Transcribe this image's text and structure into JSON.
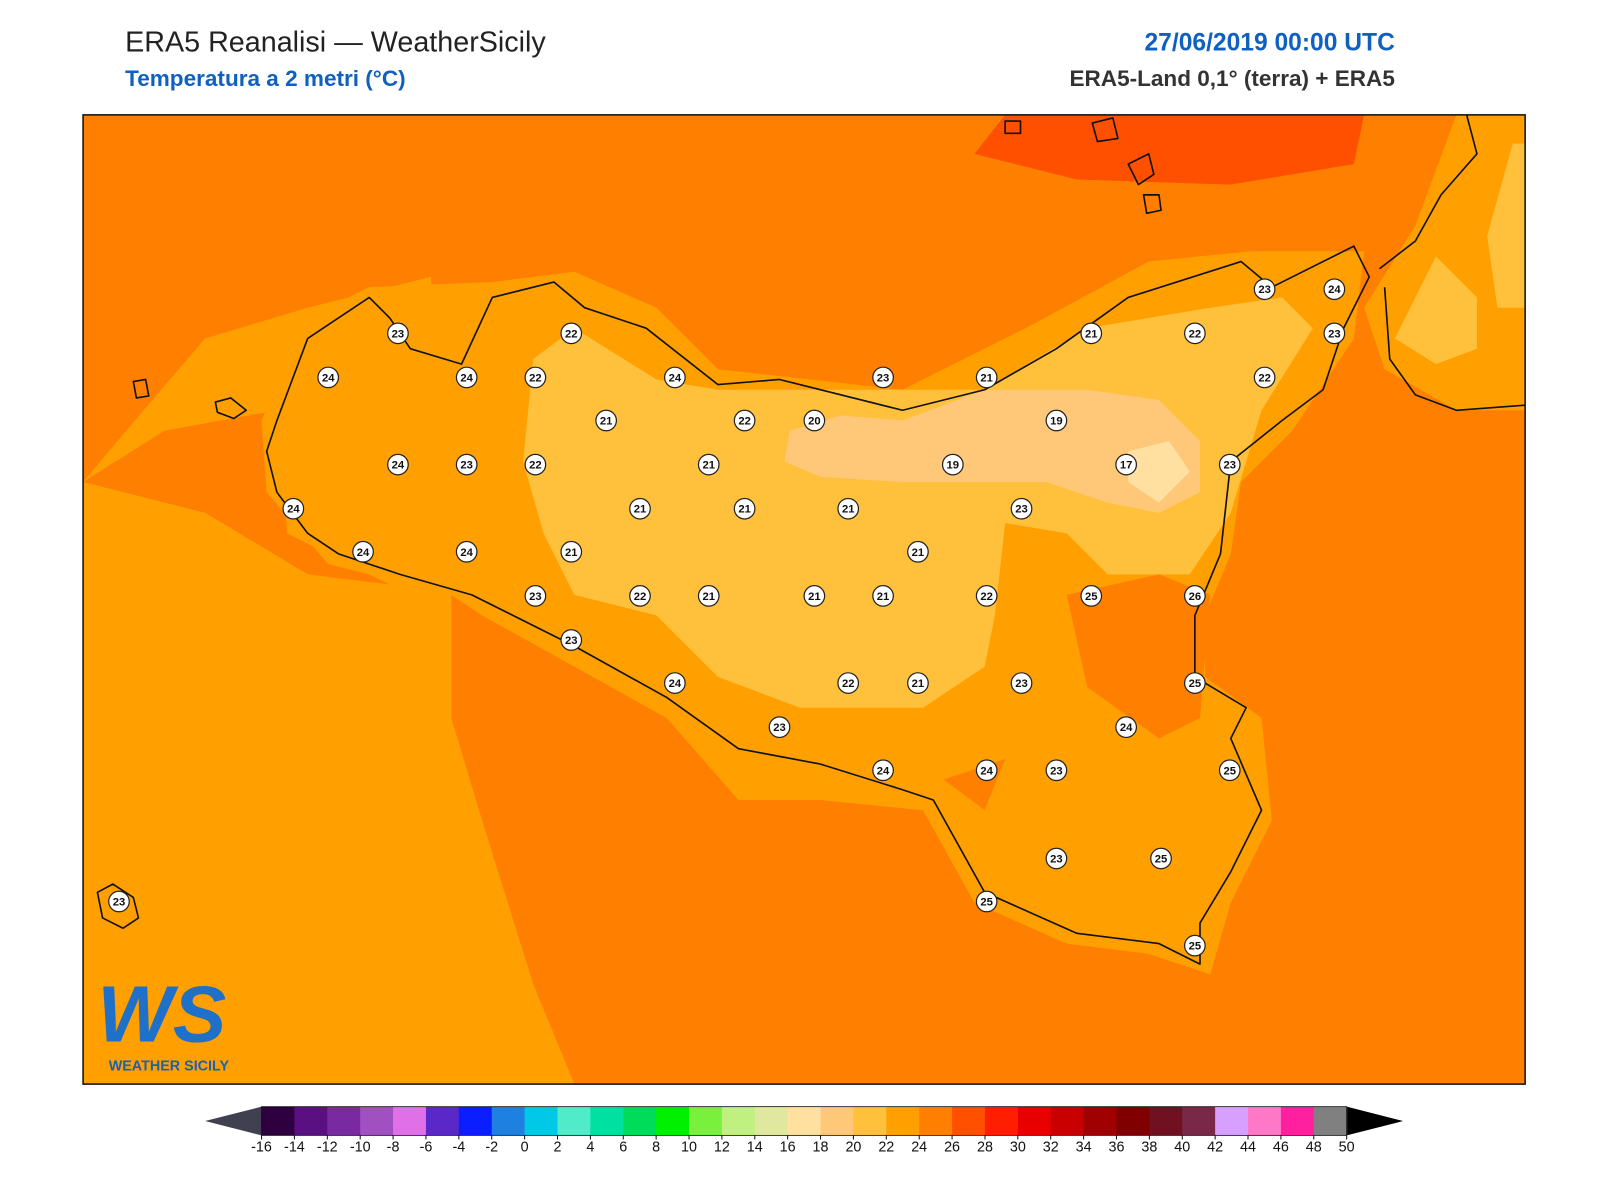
{
  "header": {
    "title": "ERA5 Reanalisi — WeatherSicily",
    "subtitle": "Temperatura a 2 metri (°C)",
    "datetime": "27/06/2019 00:00 UTC",
    "source": "ERA5-Land 0,1° (terra) + ERA5"
  },
  "stations": [
    23,
    22,
    24,
    24,
    22,
    24,
    21,
    22,
    20,
    24,
    23,
    22,
    21,
    24,
    21,
    21,
    21,
    24,
    24,
    21,
    23,
    22,
    21,
    21,
    21,
    23,
    24,
    23,
    22,
    21,
    23,
    21,
    21,
    22,
    23,
    24,
    23,
    22,
    19,
    19,
    17,
    23,
    23,
    21,
    22,
    25,
    26,
    23,
    25,
    24,
    24,
    24,
    23,
    25,
    23,
    25,
    25,
    25,
    23
  ],
  "colorbar": {
    "ticks": [
      -16,
      -14,
      -12,
      -10,
      -8,
      -6,
      -4,
      -2,
      0,
      2,
      4,
      6,
      8,
      10,
      12,
      14,
      16,
      18,
      20,
      22,
      24,
      26,
      28,
      30,
      32,
      34,
      36,
      38,
      40,
      42,
      44,
      46,
      48,
      50
    ],
    "colors": [
      "#2e0040",
      "#5a1080",
      "#7a2aa0",
      "#a050c0",
      "#e070e8",
      "#5a28c8",
      "#0a1eff",
      "#1e80e0",
      "#00c8e6",
      "#50ebc8",
      "#00e0a0",
      "#00dc5a",
      "#00f000",
      "#78f03c",
      "#c0f080",
      "#e0e8a0",
      "#ffe0a0",
      "#ffc878",
      "#ffc03c",
      "#ffa000",
      "#ff8000",
      "#ff5000",
      "#ff1e00",
      "#e80000",
      "#c80000",
      "#a00000",
      "#800000",
      "#701020",
      "#7a2848",
      "#d7a0ff",
      "#ff78c8",
      "#ff20a0",
      "#808080",
      "#404040"
    ],
    "under_color": "#404050",
    "over_color": "#000000"
  },
  "logo": {
    "mark": "WS",
    "text": "WEATHER SICILY"
  }
}
